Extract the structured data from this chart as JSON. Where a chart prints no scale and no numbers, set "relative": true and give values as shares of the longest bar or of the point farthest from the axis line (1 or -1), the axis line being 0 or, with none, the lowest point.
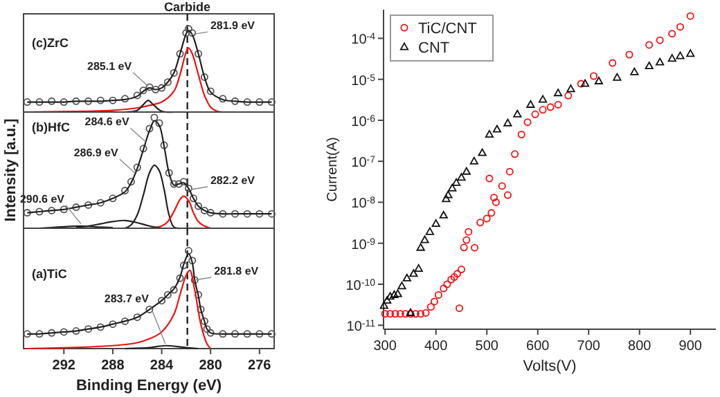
{
  "chart_data": [
    {
      "type": "line",
      "title": "(c)ZrC",
      "relative": true,
      "xlim": [
        295.3,
        274.8
      ],
      "tick_labels": false,
      "grid": false,
      "legend": false,
      "ref_lines": [
        {
          "axis": "x",
          "value": 281.9,
          "label": "Carbide",
          "line_style": "dashed"
        }
      ],
      "annotations": [
        {
          "text": "285.1 eV",
          "x": 285.1,
          "y": 0.31
        },
        {
          "text": "281.9 eV",
          "x": 281.6,
          "y": 0.93
        }
      ],
      "series": [
        {
          "type": "scatter",
          "marker": "circle",
          "color": "#555555",
          "x": [
            295,
            294,
            293,
            292,
            291,
            290,
            289,
            288,
            287,
            286,
            285.5,
            285,
            284.5,
            284,
            283.5,
            283,
            282.5,
            282,
            281.8,
            281.5,
            281,
            280.5,
            280,
            279,
            278,
            277,
            276,
            275
          ],
          "values": [
            0.12,
            0.12,
            0.13,
            0.12,
            0.13,
            0.13,
            0.14,
            0.14,
            0.16,
            0.2,
            0.26,
            0.3,
            0.27,
            0.29,
            0.36,
            0.47,
            0.7,
            0.95,
            1.0,
            0.95,
            0.7,
            0.42,
            0.25,
            0.16,
            0.13,
            0.12,
            0.12,
            0.12
          ]
        },
        {
          "color": "#222222",
          "x": [
            295,
            294,
            293,
            292,
            291,
            290,
            289,
            288,
            287,
            286,
            285.5,
            285,
            284.5,
            284,
            283.5,
            283,
            282.5,
            282,
            281.8,
            281.5,
            281,
            280.5,
            280,
            279,
            278,
            277,
            276,
            275
          ],
          "values": [
            0.12,
            0.12,
            0.12,
            0.12,
            0.13,
            0.13,
            0.13,
            0.14,
            0.15,
            0.19,
            0.25,
            0.29,
            0.27,
            0.29,
            0.36,
            0.47,
            0.7,
            0.94,
            0.98,
            0.93,
            0.7,
            0.42,
            0.24,
            0.15,
            0.13,
            0.12,
            0.12,
            0.12
          ]
        },
        {
          "color": "#ee1111",
          "x": [
            295,
            290,
            288,
            286,
            285,
            284,
            283,
            282.5,
            282,
            281.8,
            281.5,
            281,
            280.5,
            280,
            279.5,
            279
          ],
          "values": [
            0,
            0.01,
            0.02,
            0.05,
            0.08,
            0.12,
            0.25,
            0.45,
            0.72,
            0.77,
            0.7,
            0.45,
            0.2,
            0.06,
            0.01,
            0
          ]
        },
        {
          "color": "#222222",
          "x": [
            287,
            286,
            285.5,
            285.1,
            284.7,
            284,
            283
          ],
          "values": [
            0,
            0.02,
            0.09,
            0.14,
            0.09,
            0.01,
            0
          ]
        }
      ]
    },
    {
      "type": "line",
      "title": "(b)HfC",
      "ylabel": "Intensity [a.u.]",
      "relative": true,
      "xlim": [
        295.3,
        274.8
      ],
      "tick_labels": false,
      "grid": false,
      "legend": false,
      "ref_lines": [
        {
          "axis": "x",
          "value": 281.9,
          "line_style": "dashed"
        }
      ],
      "annotations": [
        {
          "text": "284.6 eV",
          "x": 285.3,
          "y": 0.78
        },
        {
          "text": "286.9 eV",
          "x": 286.2,
          "y": 0.5
        },
        {
          "text": "290.6 eV",
          "x": 290.6,
          "y": 0.04
        },
        {
          "text": "282.2 eV",
          "x": 281.6,
          "y": 0.35
        }
      ],
      "series": [
        {
          "type": "scatter",
          "marker": "circle",
          "color": "#555555",
          "x": [
            295,
            294,
            293,
            292,
            291,
            290,
            289,
            288,
            287,
            286.5,
            286,
            285.5,
            285,
            284.6,
            284.2,
            283.8,
            283.4,
            283,
            282.6,
            282.2,
            281.8,
            281.4,
            281,
            280.5,
            280,
            279,
            278,
            277,
            276,
            275
          ],
          "values": [
            0.14,
            0.15,
            0.16,
            0.17,
            0.19,
            0.21,
            0.23,
            0.27,
            0.34,
            0.42,
            0.55,
            0.72,
            0.9,
            1.0,
            0.95,
            0.75,
            0.5,
            0.4,
            0.4,
            0.42,
            0.36,
            0.27,
            0.2,
            0.16,
            0.14,
            0.13,
            0.13,
            0.13,
            0.13,
            0.13
          ]
        },
        {
          "color": "#222222",
          "x": [
            295,
            294,
            293,
            292,
            291,
            290,
            289,
            288,
            287,
            286.5,
            286,
            285.5,
            285,
            284.6,
            284.2,
            283.8,
            283.4,
            283,
            282.6,
            282.2,
            281.8,
            281.4,
            281,
            280.5,
            280,
            279,
            278,
            277,
            276,
            275
          ],
          "values": [
            0.14,
            0.15,
            0.16,
            0.17,
            0.19,
            0.21,
            0.23,
            0.27,
            0.33,
            0.41,
            0.54,
            0.71,
            0.88,
            0.97,
            0.93,
            0.74,
            0.5,
            0.39,
            0.4,
            0.41,
            0.36,
            0.27,
            0.2,
            0.16,
            0.14,
            0.13,
            0.13,
            0.13,
            0.13,
            0.13
          ]
        },
        {
          "color": "#222222",
          "x": [
            287,
            286.5,
            286,
            285.5,
            285,
            284.6,
            284.2,
            283.8,
            283.4,
            283,
            282.5
          ],
          "values": [
            0,
            0.03,
            0.12,
            0.3,
            0.5,
            0.57,
            0.52,
            0.35,
            0.12,
            0.01,
            0
          ]
        },
        {
          "color": "#ee1111",
          "x": [
            285,
            284,
            283.5,
            283,
            282.5,
            282.2,
            281.8,
            281.4,
            281,
            280.5,
            280
          ],
          "values": [
            0,
            0.02,
            0.06,
            0.15,
            0.26,
            0.29,
            0.25,
            0.14,
            0.06,
            0.02,
            0
          ]
        },
        {
          "color": "#222222",
          "x": [
            291,
            290,
            289,
            288,
            287,
            286,
            285,
            284
          ],
          "values": [
            0.01,
            0.02,
            0.04,
            0.06,
            0.07,
            0.05,
            0.02,
            0
          ]
        },
        {
          "color": "#222222",
          "x": [
            294,
            292.5,
            290.6,
            289,
            288
          ],
          "values": [
            0,
            0.01,
            0.02,
            0.01,
            0.005
          ]
        }
      ]
    },
    {
      "type": "line",
      "title": "(a)TiC",
      "xlabel": "Binding Energy (eV)",
      "relative": true,
      "xlim": [
        295.3,
        274.8
      ],
      "xticks": [
        292,
        288,
        284,
        280,
        276
      ],
      "tick_labels": "x",
      "grid": false,
      "legend": false,
      "ref_lines": [
        {
          "axis": "x",
          "value": 281.9,
          "line_style": "dashed"
        }
      ],
      "annotations": [
        {
          "text": "283.7 eV",
          "x": 283.7,
          "y": 0.05
        },
        {
          "text": "281.8 eV",
          "x": 281.3,
          "y": 0.7
        }
      ],
      "series": [
        {
          "type": "scatter",
          "marker": "circle",
          "color": "#555555",
          "x": [
            295,
            294,
            293,
            292,
            291,
            290,
            289,
            288,
            287,
            286,
            285,
            284,
            283.5,
            283,
            282.5,
            282.2,
            281.8,
            281.5,
            281.3,
            281,
            280.8,
            280.5,
            280.3,
            280,
            279,
            278,
            277,
            276,
            275
          ],
          "values": [
            0.15,
            0.15,
            0.16,
            0.17,
            0.18,
            0.2,
            0.22,
            0.25,
            0.28,
            0.32,
            0.4,
            0.49,
            0.55,
            0.6,
            0.72,
            0.85,
            1.0,
            0.9,
            0.7,
            0.55,
            0.4,
            0.28,
            0.2,
            0.16,
            0.15,
            0.15,
            0.15,
            0.15,
            0.15
          ]
        },
        {
          "color": "#222222",
          "x": [
            295,
            294,
            293,
            292,
            291,
            290,
            289,
            288,
            287,
            286,
            285,
            284,
            283.5,
            283,
            282.5,
            282.2,
            281.8,
            281.5,
            281.3,
            281,
            280.8,
            280.5,
            280.3,
            280,
            279,
            278,
            277,
            276,
            275
          ],
          "values": [
            0.15,
            0.15,
            0.16,
            0.17,
            0.18,
            0.2,
            0.22,
            0.25,
            0.28,
            0.32,
            0.4,
            0.49,
            0.55,
            0.61,
            0.73,
            0.86,
            0.97,
            0.88,
            0.7,
            0.54,
            0.4,
            0.28,
            0.2,
            0.16,
            0.15,
            0.15,
            0.15,
            0.15,
            0.15
          ]
        },
        {
          "color": "#ee1111",
          "x": [
            295,
            288,
            286,
            285,
            284,
            283,
            282.5,
            282,
            281.7,
            281.3,
            280.8,
            280.3,
            280
          ],
          "values": [
            0,
            0.03,
            0.06,
            0.1,
            0.17,
            0.35,
            0.55,
            0.75,
            0.8,
            0.6,
            0.25,
            0.05,
            0
          ]
        },
        {
          "color": "#222222",
          "x": [
            287,
            285,
            283.7,
            282,
            281
          ],
          "values": [
            0,
            0.01,
            0.03,
            0.01,
            0
          ]
        }
      ]
    },
    {
      "type": "scatter",
      "xlabel": "Volts(V)",
      "ylabel": "Current(A)",
      "log": "y",
      "xlim": [
        297,
        950
      ],
      "ylim": [
        8e-12,
        0.0005
      ],
      "xticks": [
        300,
        400,
        500,
        600,
        700,
        800,
        900
      ],
      "yticks": [
        {
          "value": 1e-11,
          "label": "10$^{-11}$"
        },
        {
          "value": 1e-10,
          "label": "10$^{-10}$"
        },
        {
          "value": 1e-09,
          "label": "10$^{-9}$"
        },
        {
          "value": 1e-08,
          "label": "10$^{-8}$"
        },
        {
          "value": 1e-07,
          "label": "10$^{-7}$"
        },
        {
          "value": 1e-06,
          "label": "10$^{-6}$"
        },
        {
          "value": 1e-05,
          "label": "10$^{-5}$"
        },
        {
          "value": 0.0001,
          "label": "10$^{-4}$"
        }
      ],
      "grid": false,
      "legend": "top left",
      "series": [
        {
          "name": "TiC/CNT",
          "marker": "circle",
          "color": "#ee1111",
          "x": [
            300,
            310,
            320,
            330,
            340,
            350,
            360,
            370,
            380,
            390,
            397,
            405,
            415,
            422,
            430,
            436,
            442,
            446,
            450,
            455,
            460,
            464,
            476,
            487,
            500,
            505,
            509,
            514,
            518,
            530,
            541,
            545,
            555,
            568,
            580,
            595,
            610,
            625,
            640,
            660,
            685,
            710,
            747,
            780,
            819,
            840,
            864,
            880,
            900
          ],
          "values": [
            1.9e-11,
            1.9e-11,
            1.9e-11,
            1.9e-11,
            1.9e-11,
            1.9e-11,
            1.9e-11,
            1.9e-11,
            2e-11,
            2.8e-11,
            3.8e-11,
            5.5e-11,
            7.9e-11,
            1e-10,
            1.3e-10,
            1.5e-10,
            1.8e-10,
            2.6e-11,
            2.3e-10,
            7.9e-10,
            1.2e-09,
            1.9e-09,
            7.8e-10,
            3.2e-09,
            4e-09,
            3.8e-08,
            5.5e-09,
            1.3e-08,
            1e-08,
            2.5e-08,
            1.5e-08,
            5.6e-08,
            1.5e-07,
            4.5e-07,
            9e-07,
            1.4e-06,
            1.8e-06,
            2.1e-06,
            2.4e-06,
            4e-06,
            7.8e-06,
            1.2e-05,
            2.5e-05,
            4e-05,
            6.9e-05,
            9e-05,
            0.00013,
            0.00019,
            0.00035
          ]
        },
        {
          "name": "CNT",
          "marker": "triangle",
          "color": "#111111",
          "x": [
            298,
            304,
            310,
            318,
            325,
            333,
            343,
            350,
            356,
            366,
            370,
            378,
            388,
            400,
            415,
            420,
            424,
            432,
            440,
            450,
            460,
            475,
            491,
            505,
            520,
            541,
            560,
            586,
            610,
            640,
            665,
            693,
            720,
            756,
            790,
            819,
            840,
            864,
            880,
            900
          ],
          "values": [
            3e-11,
            4e-11,
            5e-11,
            5.5e-11,
            5.8e-11,
            9e-11,
            1.4e-10,
            2e-11,
            1.8e-10,
            2.4e-10,
            7.8e-10,
            1.2e-09,
            1.9e-09,
            3e-09,
            4.8e-09,
            1.2e-08,
            1.5e-08,
            2.2e-08,
            3e-08,
            4e-08,
            5.6e-08,
            1e-07,
            1.6e-07,
            4.5e-07,
            6e-07,
            8.5e-07,
            1.4e-06,
            2.4e-06,
            3.2e-06,
            4.6e-06,
            5.8e-06,
            7.8e-06,
            9e-06,
            1.1e-05,
            1.5e-05,
            2.1e-05,
            2.6e-05,
            3.2e-05,
            3.7e-05,
            4.2e-05
          ]
        }
      ]
    }
  ]
}
